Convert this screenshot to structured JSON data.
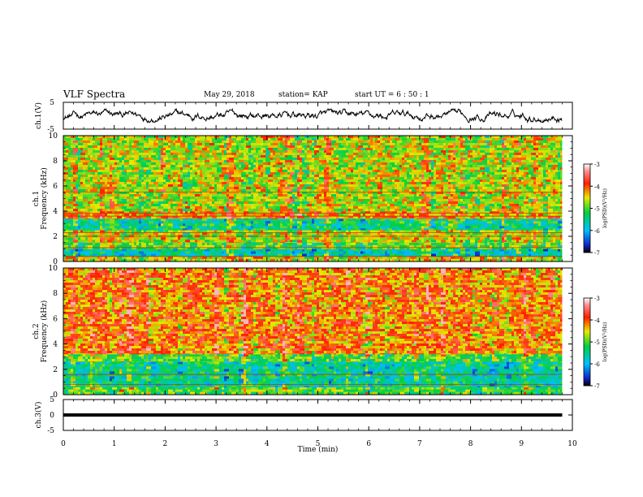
{
  "header": {
    "title": "VLF Spectra",
    "date": "May 29, 2018",
    "station": "station= KAP",
    "start": "start  UT =   6  : 50 : 1"
  },
  "chart_data": [
    {
      "type": "line",
      "panel": "ch1-waveform",
      "ylabel": "ch.1(V)",
      "ylim": [
        -5,
        5
      ],
      "yticks": [
        "5",
        "-5"
      ],
      "xlim": [
        0,
        10
      ],
      "xlabel": "",
      "data_extent_min": 9.8,
      "series": [
        {
          "color": "#000000",
          "amplitude_range": [
            -2.5,
            2.5
          ]
        }
      ]
    },
    {
      "type": "heatmap",
      "panel": "ch1-spectrogram",
      "ylabel": "ch.1",
      "ylabel2": "Frequency  (kHz)",
      "ylim": [
        0,
        10
      ],
      "yticks": [
        "0",
        "2",
        "4",
        "6",
        "8",
        "10"
      ],
      "xlim": [
        0,
        10
      ],
      "data_extent_min": 9.8,
      "colorbar": {
        "label": "log(PSD)(V²/Hz)",
        "range": [
          -7,
          -3
        ],
        "ticks": [
          "-3",
          "-4",
          "-5",
          "-6",
          "-7"
        ]
      },
      "bands_khz": [
        {
          "from": 0.0,
          "to": 0.4,
          "level": -4.5
        },
        {
          "from": 0.4,
          "to": 1.0,
          "level": -5.6
        },
        {
          "from": 1.0,
          "to": 1.5,
          "level": -5.0
        },
        {
          "from": 1.5,
          "to": 2.5,
          "level": -4.6
        },
        {
          "from": 2.5,
          "to": 3.4,
          "level": -5.4
        },
        {
          "from": 3.4,
          "to": 4.0,
          "level": -4.2
        },
        {
          "from": 4.0,
          "to": 10.0,
          "level": -4.6
        }
      ],
      "lines_khz": [
        0.4,
        1.1,
        2.0,
        2.3,
        3.6,
        3.85,
        5.5
      ]
    },
    {
      "type": "heatmap",
      "panel": "ch2-spectrogram",
      "ylabel": "ch.2",
      "ylabel2": "Frequency  (kHz)",
      "ylim": [
        0,
        10
      ],
      "yticks": [
        "0",
        "2",
        "4",
        "6",
        "8",
        "10"
      ],
      "xlim": [
        0,
        10
      ],
      "data_extent_min": 9.8,
      "colorbar": {
        "label": "log(PSD)(V²/Hz)",
        "range": [
          -7,
          -3
        ],
        "ticks": [
          "-3",
          "-4",
          "-5",
          "-6",
          "-7"
        ]
      },
      "bands_khz": [
        {
          "from": 0.0,
          "to": 0.6,
          "level": -5.0
        },
        {
          "from": 0.6,
          "to": 2.6,
          "level": -5.5
        },
        {
          "from": 2.6,
          "to": 3.2,
          "level": -5.0
        },
        {
          "from": 3.2,
          "to": 10.0,
          "level": -4.1
        }
      ],
      "lines_khz": [
        0.8,
        1.6
      ]
    },
    {
      "type": "line",
      "panel": "ch3-waveform",
      "ylabel": "ch.3(V)",
      "ylim": [
        -5,
        5
      ],
      "yticks": [
        "5",
        "0",
        "-5"
      ],
      "xlim": [
        0,
        10
      ],
      "xlabel": "Time  (min)",
      "xticks": [
        "0",
        "1",
        "2",
        "3",
        "4",
        "5",
        "6",
        "7",
        "8",
        "9",
        "10"
      ],
      "data_extent_min": 9.8,
      "series": [
        {
          "color": "#000000",
          "value": 0
        }
      ]
    }
  ]
}
